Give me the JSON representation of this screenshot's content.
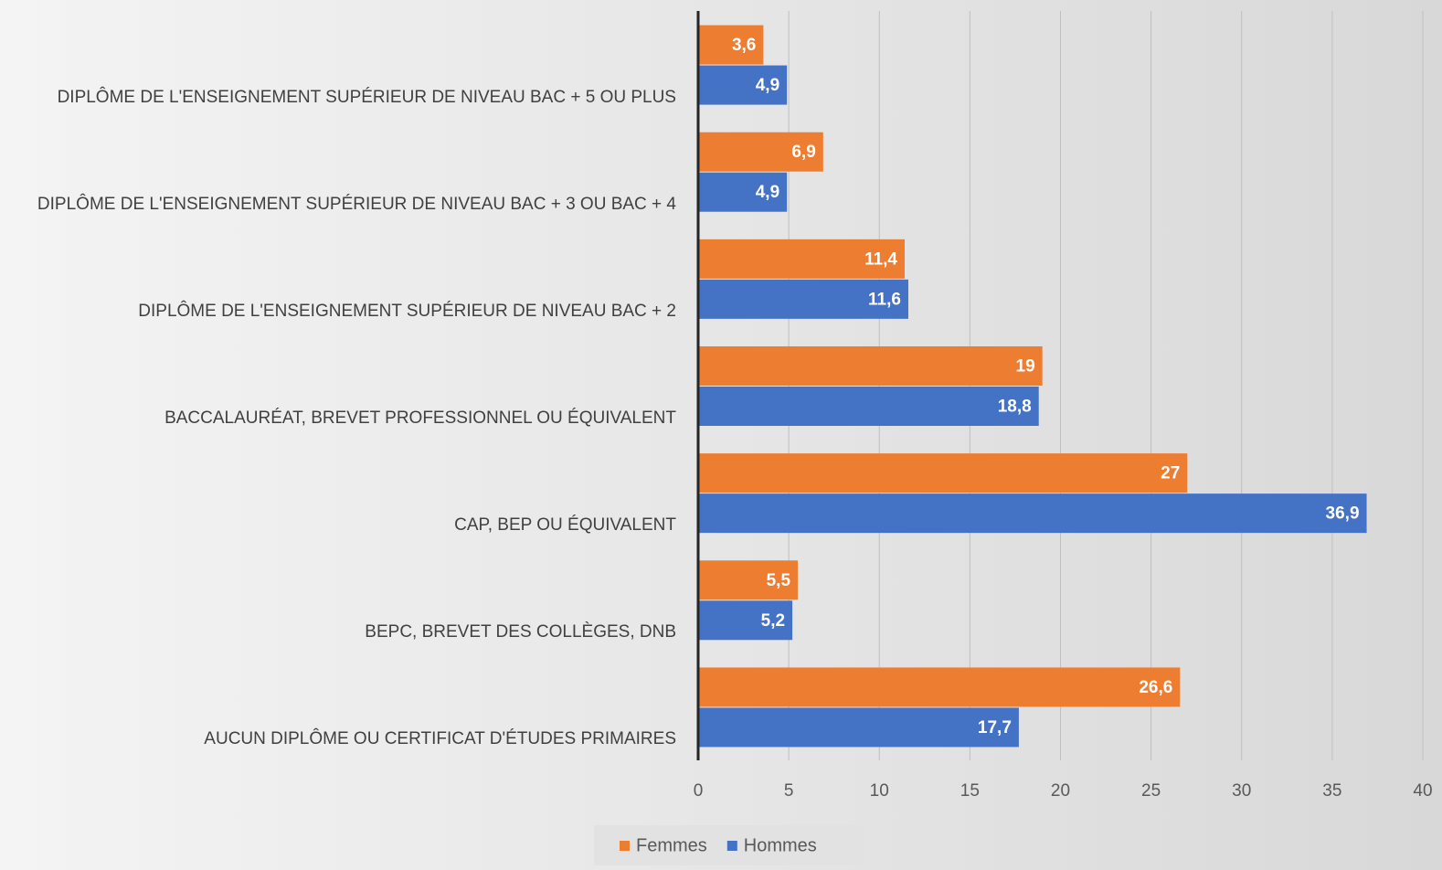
{
  "chart_data": {
    "type": "bar",
    "orientation": "horizontal",
    "categories": [
      "DIPLÔME DE L'ENSEIGNEMENT SUPÉRIEUR DE NIVEAU BAC + 5 OU PLUS",
      "DIPLÔME DE L'ENSEIGNEMENT SUPÉRIEUR DE NIVEAU BAC + 3 OU BAC + 4",
      "DIPLÔME DE L'ENSEIGNEMENT SUPÉRIEUR DE NIVEAU BAC + 2",
      "BACCALAURÉAT, BREVET PROFESSIONNEL OU ÉQUIVALENT",
      "CAP, BEP OU ÉQUIVALENT",
      "BEPC, BREVET DES COLLÈGES, DNB",
      "AUCUN DIPLÔME OU CERTIFICAT D'ÉTUDES PRIMAIRES"
    ],
    "series": [
      {
        "name": "Femmes",
        "color": "#ed7d31",
        "values": [
          3.6,
          6.9,
          11.4,
          19,
          27,
          5.5,
          26.6
        ],
        "value_labels": [
          "3,6",
          "6,9",
          "11,4",
          "19",
          "27",
          "5,5",
          "26,6"
        ]
      },
      {
        "name": "Hommes",
        "color": "#4472c4",
        "values": [
          4.9,
          4.9,
          11.6,
          18.8,
          36.9,
          5.2,
          17.7
        ],
        "value_labels": [
          "4,9",
          "4,9",
          "11,6",
          "18,8",
          "36,9",
          "5,2",
          "17,7"
        ]
      }
    ],
    "xlim": [
      0,
      40
    ],
    "xticks": [
      0,
      5,
      10,
      15,
      20,
      25,
      30,
      35,
      40
    ],
    "grid": true,
    "legend": "bottom"
  }
}
